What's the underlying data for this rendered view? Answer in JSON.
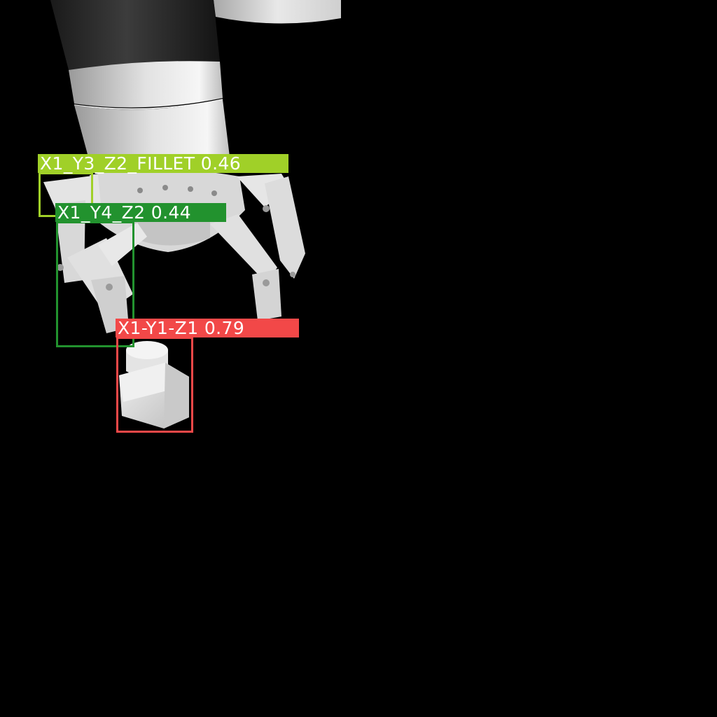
{
  "scene": {
    "background_color": "#000000",
    "subject": "robot-gripper-render"
  },
  "detections": [
    {
      "label": "X1_Y3_Z2_FILLET 0.46",
      "class_name": "X1_Y3_Z2_FILLET",
      "confidence": 0.46,
      "color": "#a0d028"
    },
    {
      "label": "X1_Y4_Z2 0.44",
      "class_name": "X1_Y4_Z2",
      "confidence": 0.44,
      "color": "#22922e"
    },
    {
      "label": "X1-Y1-Z1 0.79",
      "class_name": "X1-Y1-Z1",
      "confidence": 0.79,
      "color": "#f24848"
    }
  ]
}
